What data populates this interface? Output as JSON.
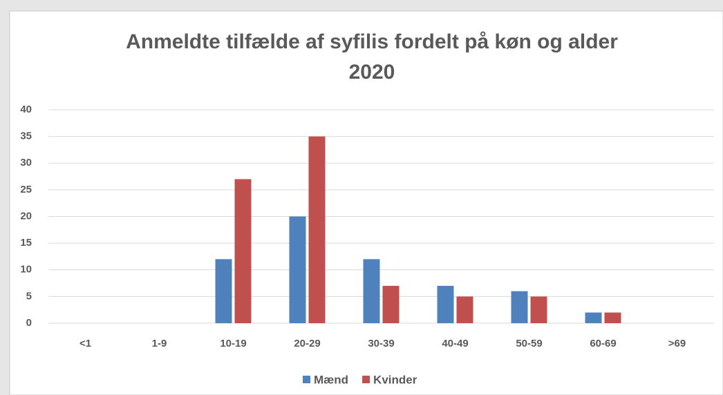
{
  "chart_data": {
    "type": "bar",
    "title": "Anmeldte tilfælde af syfilis fordelt på køn og alder",
    "subtitle": "2020",
    "categories": [
      "<1",
      "1-9",
      "10-19",
      "20-29",
      "30-39",
      "40-49",
      "50-59",
      "60-69",
      ">69"
    ],
    "series": [
      {
        "name": "Mænd",
        "color": "#4f81bd",
        "values": [
          0,
          0,
          12,
          20,
          12,
          7,
          6,
          2,
          0
        ]
      },
      {
        "name": "Kvinder",
        "color": "#c0504d",
        "values": [
          0,
          0,
          27,
          35,
          7,
          5,
          5,
          2,
          0
        ]
      }
    ],
    "ylim": [
      0,
      40
    ],
    "yticks": [
      0,
      5,
      10,
      15,
      20,
      25,
      30,
      35,
      40
    ],
    "grid": true,
    "legend": "bottom"
  }
}
